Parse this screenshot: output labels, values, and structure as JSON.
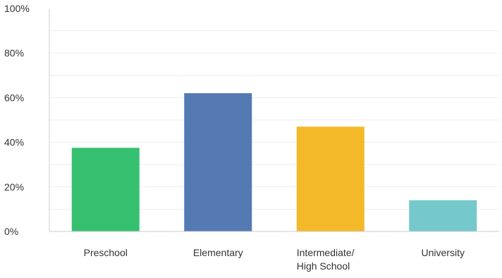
{
  "chart_data": {
    "type": "bar",
    "categories": [
      "Preschool",
      "Elementary",
      "Intermediate/ High School",
      "University"
    ],
    "category_lines": [
      [
        "Preschool"
      ],
      [
        "Elementary"
      ],
      [
        "Intermediate/",
        "High School"
      ],
      [
        "University"
      ]
    ],
    "values": [
      37.5,
      62,
      47,
      14
    ],
    "colors": [
      "#35c06f",
      "#5579b3",
      "#f4b929",
      "#75c8cc"
    ],
    "ylim": [
      0,
      100
    ],
    "yticks": [
      0,
      20,
      40,
      60,
      80,
      100
    ],
    "ytick_labels": [
      "0%",
      "20%",
      "40%",
      "60%",
      "80%",
      "100%"
    ],
    "grid": true,
    "grid_color": "#eeeeee",
    "axis_color": "#cccccc"
  }
}
